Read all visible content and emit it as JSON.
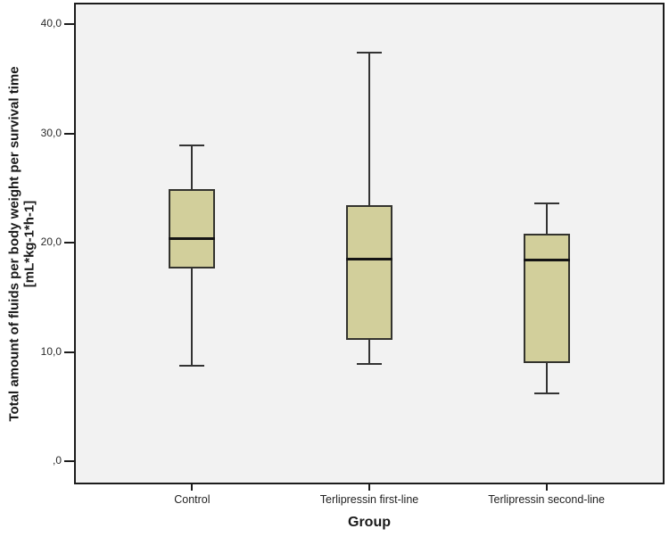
{
  "figure": {
    "background_color": "#ffffff",
    "plot_background_color": "#f2f2f2",
    "frame_color": "#1c1c1c"
  },
  "chart_data": {
    "type": "boxplot",
    "title": "",
    "xlabel": "Group",
    "ylabel": "Total amount of fluids per body weight per survival time [mL*kg-1*h-1]",
    "ylabel_line1": "Total amount of fluids per body weight per survival time",
    "ylabel_line2": "[mL*kg-1*h-1]",
    "categories": [
      "Control",
      "Terlipressin first-line",
      "Terlipressin second-line"
    ],
    "yticks": [
      {
        "value": 0,
        "label": ",0"
      },
      {
        "value": 10,
        "label": "10,0"
      },
      {
        "value": 20,
        "label": "20,0"
      },
      {
        "value": 30,
        "label": "30,0"
      },
      {
        "value": 40,
        "label": "40,0"
      }
    ],
    "ylim": [
      -2,
      42
    ],
    "grid": false,
    "legend": "none",
    "series": [
      {
        "name": "Control",
        "whisker_low": 8.7,
        "q1": 17.6,
        "median": 20.4,
        "q3": 24.9,
        "whisker_high": 28.9
      },
      {
        "name": "Terlipressin first-line",
        "whisker_low": 8.9,
        "q1": 11.1,
        "median": 18.5,
        "q3": 23.4,
        "whisker_high": 37.4
      },
      {
        "name": "Terlipressin second-line",
        "whisker_low": 6.2,
        "q1": 9.0,
        "median": 18.4,
        "q3": 20.8,
        "whisker_high": 23.6
      }
    ],
    "box_fill_color": "#d2cf9b",
    "box_border_color": "#33332e",
    "median_color": "#141414",
    "whisker_color": "#333333"
  }
}
